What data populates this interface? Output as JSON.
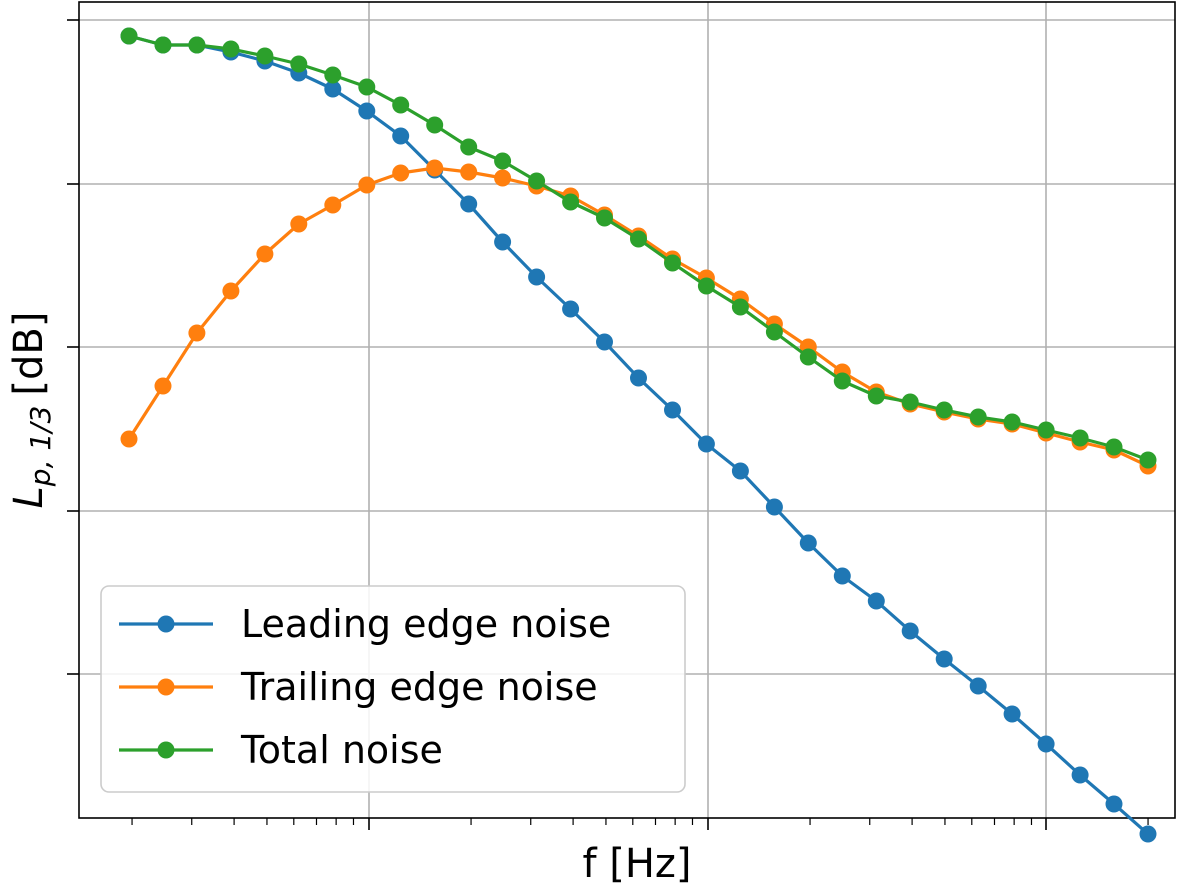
{
  "chart_data": {
    "type": "line",
    "xlabel": "f [Hz]",
    "ylabel_main": "L",
    "ylabel_sub": "p, 1/3",
    "ylabel_unit": "[dB]",
    "x_scale": "log",
    "grid": true,
    "legend_placement": "lower-left",
    "point_count": 31,
    "series": [
      {
        "name": "Leading edge noise",
        "color": "#1f77b4",
        "values": [
          148,
          139,
          139,
          132,
          123,
          111,
          95,
          73,
          48,
          14,
          -20,
          -58,
          -93,
          -125,
          -158,
          -194,
          -226,
          -260,
          -287,
          -323,
          -359,
          -392,
          -417,
          -447,
          -475,
          -502,
          -530,
          -560,
          -591,
          -620,
          -650
        ]
      },
      {
        "name": "Trailing edge noise",
        "color": "#ff7f0e",
        "values": [
          -255,
          -202,
          -149,
          -107,
          -70,
          -40,
          -21,
          -1,
          11,
          16,
          12,
          6,
          -2,
          -12,
          -31,
          -52,
          -75,
          -94,
          -115,
          -140,
          -163,
          -188,
          -208,
          -220,
          -228,
          -235,
          -240,
          -249,
          -258,
          -266,
          -282
        ]
      },
      {
        "name": "Total noise",
        "color": "#2ca02c",
        "values": [
          148,
          139,
          139,
          135,
          128,
          120,
          109,
          97,
          79,
          59,
          37,
          23,
          3,
          -18,
          -34,
          -55,
          -79,
          -102,
          -123,
          -148,
          -173,
          -197,
          -212,
          -218,
          -226,
          -233,
          -238,
          -246,
          -254,
          -263,
          -276
        ]
      }
    ]
  }
}
